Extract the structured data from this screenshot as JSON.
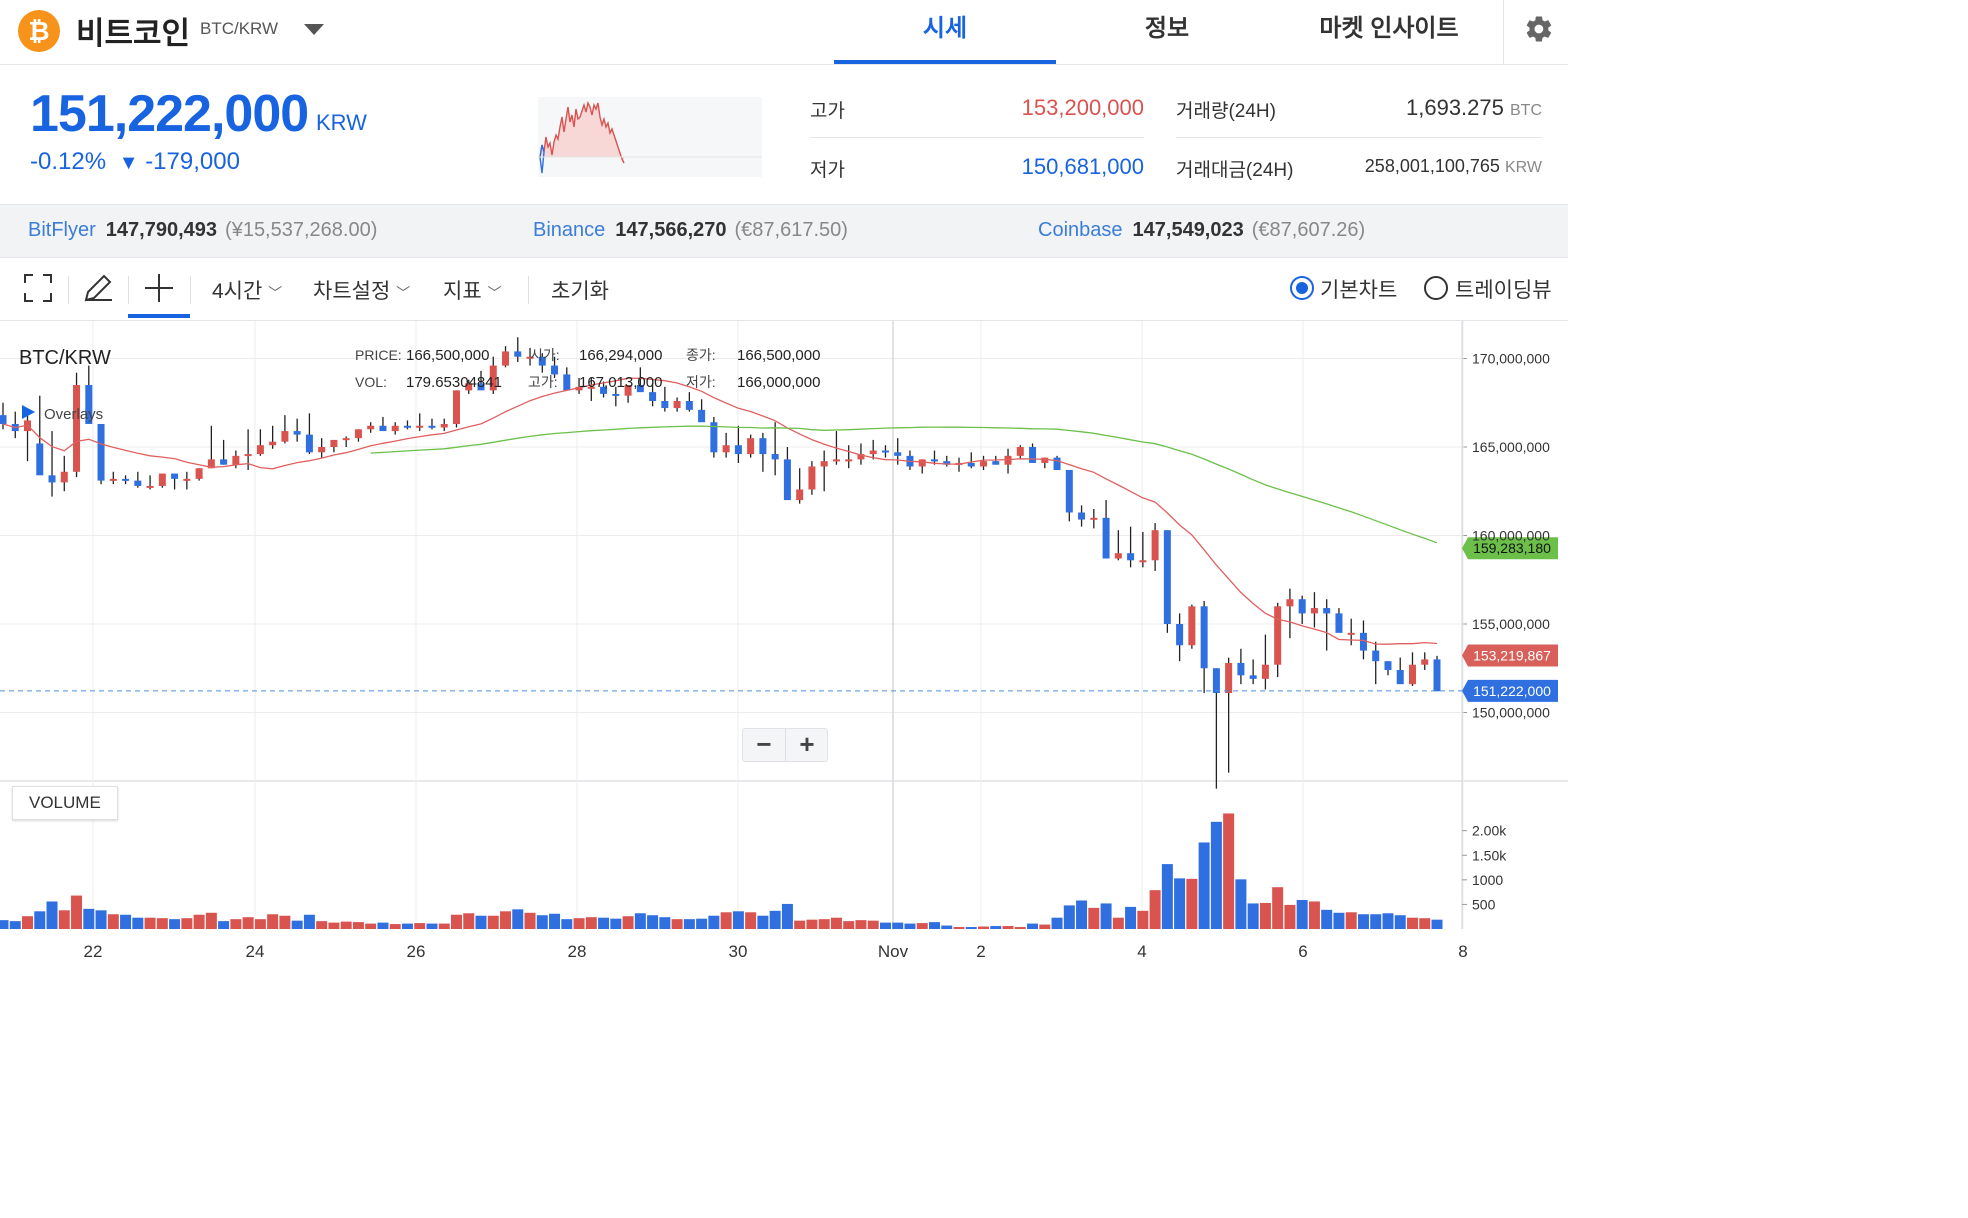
{
  "header": {
    "coin_name": "비트코인",
    "pair": "BTC/KRW",
    "tabs": [
      {
        "label": "시세",
        "active": true
      },
      {
        "label": "정보",
        "active": false
      },
      {
        "label": "마켓 인사이트",
        "active": false
      }
    ]
  },
  "price": {
    "current": "151,222,000",
    "unit": "KRW",
    "change_pct": "-0.12%",
    "change_arrow": "▼",
    "change_abs": "-179,000"
  },
  "stats": {
    "high_label": "고가",
    "high_value": "153,200,000",
    "low_label": "저가",
    "low_value": "150,681,000",
    "volume_label": "거래량(24H)",
    "volume_value": "1,693.275",
    "volume_unit": "BTC",
    "turnover_label": "거래대금(24H)",
    "turnover_value": "258,001,100,765",
    "turnover_unit": "KRW"
  },
  "exchanges": [
    {
      "name": "BitFlyer",
      "price": "147,790,493",
      "converted": "(¥15,537,268.00)"
    },
    {
      "name": "Binance",
      "price": "147,566,270",
      "converted": "(€87,617.50)"
    },
    {
      "name": "Coinbase",
      "price": "147,549,023",
      "converted": "(€87,607.26)"
    }
  ],
  "toolbar": {
    "interval": "4시간",
    "chart_settings": "차트설정",
    "indicators": "지표",
    "reset": "초기화",
    "basic_chart": "기본차트",
    "tradingview": "트레이딩뷰"
  },
  "legend": {
    "symbol": "BTC/KRW",
    "overlays": "Overlays",
    "price_label": "PRICE:",
    "price_value": "166,500,000",
    "open_label": "시가:",
    "open_value": "166,294,000",
    "close_label": "종가:",
    "close_value": "166,500,000",
    "vol_label": "VOL:",
    "vol_value": "179.65304841",
    "high_label": "고가:",
    "high_value": "167,013,000",
    "low_label": "저가:",
    "low_value": "166,000,000"
  },
  "volume_pane_label": "VOLUME",
  "zoom": {
    "minus": "−",
    "plus": "+"
  },
  "colors": {
    "accent": "#1763e0",
    "up": "#d9534f",
    "down": "#2f6fe0",
    "ma_short": "#e06060",
    "ma_long": "#6cc04a"
  },
  "chart_data": {
    "type": "candlestick",
    "y_ticks": [
      "170,000,000",
      "165,000,000",
      "160,000,000",
      "155,000,000",
      "150,000,000"
    ],
    "y_range": [
      144000000,
      172000000
    ],
    "x_ticks": [
      "22",
      "24",
      "26",
      "28",
      "30",
      "Nov",
      "2",
      "4",
      "6",
      "8"
    ],
    "volume_ticks": [
      "2.00k",
      "1.50k",
      "1000",
      "500"
    ],
    "volume_range": [
      0,
      2400
    ],
    "price_tags": [
      {
        "label": "159,283,180",
        "value": 159283180,
        "color": "#6cc04a"
      },
      {
        "label": "153,219,867",
        "value": 153219867,
        "color": "#d9605a"
      },
      {
        "label": "151,222,000",
        "value": 151222000,
        "color": "#2f6fe0"
      }
    ],
    "candles": [
      [
        166.8,
        167.5,
        166.0,
        166.3,
        180
      ],
      [
        166.3,
        167.0,
        165.5,
        165.9,
        160
      ],
      [
        165.9,
        166.9,
        164.2,
        166.5,
        260
      ],
      [
        165.2,
        167.9,
        164.3,
        163.4,
        360
      ],
      [
        163.4,
        165.9,
        162.2,
        163.0,
        560
      ],
      [
        163.0,
        164.5,
        162.5,
        163.6,
        380
      ],
      [
        163.6,
        169.2,
        163.3,
        168.5,
        680
      ],
      [
        168.5,
        169.6,
        166.9,
        166.3,
        410
      ],
      [
        166.3,
        166.3,
        162.9,
        163.1,
        380
      ],
      [
        163.1,
        163.6,
        162.9,
        163.2,
        300
      ],
      [
        163.2,
        163.4,
        162.9,
        163.1,
        290
      ],
      [
        163.1,
        163.6,
        162.7,
        162.8,
        230
      ],
      [
        162.8,
        163.4,
        162.6,
        162.8,
        230
      ],
      [
        162.8,
        163.4,
        162.7,
        163.5,
        220
      ],
      [
        163.5,
        163.5,
        162.6,
        163.2,
        200
      ],
      [
        163.2,
        163.6,
        162.6,
        163.2,
        220
      ],
      [
        163.2,
        163.8,
        163.1,
        163.8,
        290
      ],
      [
        163.8,
        166.2,
        163.8,
        164.3,
        330
      ],
      [
        164.3,
        165.4,
        164.0,
        164.0,
        160
      ],
      [
        164.0,
        164.8,
        163.8,
        164.5,
        200
      ],
      [
        164.5,
        166.0,
        163.7,
        164.6,
        240
      ],
      [
        164.6,
        166.0,
        164.5,
        165.1,
        200
      ],
      [
        165.1,
        166.2,
        164.9,
        165.3,
        300
      ],
      [
        165.3,
        166.8,
        165.2,
        165.9,
        270
      ],
      [
        165.9,
        166.6,
        165.3,
        165.7,
        170
      ],
      [
        165.7,
        166.9,
        164.6,
        164.7,
        290
      ],
      [
        164.7,
        165.5,
        164.4,
        165.0,
        160
      ],
      [
        165.0,
        165.2,
        164.7,
        165.4,
        130
      ],
      [
        165.4,
        165.6,
        165.0,
        165.5,
        150
      ],
      [
        165.5,
        166.0,
        165.3,
        166.0,
        140
      ],
      [
        166.0,
        166.4,
        165.8,
        166.2,
        110
      ],
      [
        166.2,
        166.7,
        166.0,
        165.9,
        130
      ],
      [
        165.9,
        166.4,
        165.7,
        166.2,
        100
      ],
      [
        166.2,
        166.5,
        166.0,
        166.1,
        110
      ],
      [
        166.1,
        166.9,
        165.9,
        166.2,
        120
      ],
      [
        166.2,
        166.6,
        166.0,
        166.1,
        110
      ],
      [
        166.1,
        166.6,
        165.9,
        166.3,
        110
      ],
      [
        166.3,
        168.2,
        166.1,
        168.2,
        290
      ],
      [
        168.2,
        168.8,
        168.0,
        168.6,
        320
      ],
      [
        168.6,
        169.3,
        168.3,
        168.2,
        270
      ],
      [
        168.2,
        170.1,
        168.0,
        169.6,
        270
      ],
      [
        169.6,
        170.7,
        169.5,
        170.4,
        360
      ],
      [
        170.4,
        171.2,
        169.8,
        170.1,
        400
      ],
      [
        170.1,
        170.6,
        169.6,
        170.1,
        330
      ],
      [
        170.1,
        170.3,
        169.2,
        169.6,
        280
      ],
      [
        169.6,
        170.1,
        168.9,
        169.1,
        310
      ],
      [
        169.1,
        169.5,
        168.6,
        168.2,
        200
      ],
      [
        168.2,
        168.9,
        168.0,
        168.4,
        220
      ],
      [
        168.4,
        168.9,
        167.6,
        168.4,
        240
      ],
      [
        168.4,
        168.7,
        167.8,
        168.0,
        230
      ],
      [
        168.0,
        168.4,
        167.3,
        167.9,
        210
      ],
      [
        167.9,
        168.2,
        167.5,
        168.5,
        260
      ],
      [
        168.5,
        169.5,
        168.3,
        168.1,
        320
      ],
      [
        168.1,
        168.6,
        167.3,
        167.6,
        280
      ],
      [
        167.6,
        168.4,
        167.0,
        167.2,
        240
      ],
      [
        167.2,
        167.8,
        167.0,
        167.6,
        200
      ],
      [
        167.6,
        168.1,
        167.0,
        167.1,
        200
      ],
      [
        167.1,
        167.7,
        166.7,
        166.4,
        210
      ],
      [
        166.4,
        166.7,
        164.4,
        164.7,
        270
      ],
      [
        164.7,
        165.8,
        164.4,
        165.1,
        340
      ],
      [
        165.1,
        166.2,
        164.1,
        164.6,
        360
      ],
      [
        164.6,
        165.7,
        164.4,
        165.5,
        340
      ],
      [
        165.5,
        165.8,
        163.6,
        164.6,
        270
      ],
      [
        164.6,
        166.4,
        163.4,
        164.3,
        370
      ],
      [
        164.3,
        165.0,
        162.2,
        162.0,
        510
      ],
      [
        162.0,
        163.8,
        161.8,
        162.6,
        170
      ],
      [
        162.6,
        164.2,
        162.3,
        163.9,
        190
      ],
      [
        163.9,
        164.8,
        162.5,
        164.2,
        200
      ],
      [
        164.2,
        165.9,
        164.0,
        164.3,
        230
      ],
      [
        164.3,
        165.1,
        163.8,
        164.3,
        160
      ],
      [
        164.3,
        165.2,
        164.0,
        164.6,
        180
      ],
      [
        164.6,
        165.4,
        164.3,
        164.8,
        170
      ],
      [
        164.8,
        165.1,
        164.4,
        164.7,
        130
      ],
      [
        164.7,
        165.5,
        164.0,
        164.5,
        130
      ],
      [
        164.5,
        164.8,
        163.7,
        163.9,
        110
      ],
      [
        163.9,
        164.3,
        163.5,
        164.3,
        120
      ],
      [
        164.3,
        164.8,
        164.0,
        164.2,
        140
      ],
      [
        164.2,
        164.5,
        163.9,
        164.0,
        70
      ],
      [
        164.0,
        164.4,
        163.6,
        164.1,
        40
      ],
      [
        164.1,
        164.7,
        163.8,
        163.9,
        40
      ],
      [
        163.9,
        164.5,
        163.7,
        164.2,
        50
      ],
      [
        164.2,
        164.5,
        164.0,
        164.0,
        60
      ],
      [
        164.0,
        164.9,
        163.5,
        164.5,
        60
      ],
      [
        164.5,
        165.1,
        164.3,
        165.0,
        40
      ],
      [
        165.0,
        165.2,
        164.1,
        164.1,
        110
      ],
      [
        164.1,
        164.4,
        163.8,
        164.4,
        90
      ],
      [
        164.4,
        164.5,
        163.9,
        163.7,
        230
      ],
      [
        163.7,
        163.7,
        160.8,
        161.3,
        480
      ],
      [
        161.3,
        161.7,
        160.5,
        160.9,
        580
      ],
      [
        160.9,
        161.5,
        160.4,
        161.0,
        430
      ],
      [
        161.0,
        162.0,
        159.2,
        158.7,
        520
      ],
      [
        158.7,
        160.3,
        158.6,
        159.0,
        230
      ],
      [
        159.0,
        160.5,
        158.2,
        158.6,
        450
      ],
      [
        158.6,
        160.2,
        158.2,
        158.6,
        370
      ],
      [
        158.6,
        160.7,
        158.0,
        160.3,
        790
      ],
      [
        160.3,
        160.3,
        154.5,
        155.0,
        1320
      ],
      [
        155.0,
        155.6,
        152.9,
        153.8,
        1030
      ],
      [
        153.8,
        156.1,
        153.6,
        156.0,
        1020
      ],
      [
        156.0,
        156.3,
        151.1,
        152.5,
        1760
      ],
      [
        152.5,
        152.5,
        145.7,
        151.1,
        2180
      ],
      [
        151.1,
        153.1,
        146.6,
        152.8,
        2350
      ],
      [
        152.8,
        153.6,
        151.6,
        152.1,
        1010
      ],
      [
        152.1,
        153.0,
        151.6,
        151.9,
        520
      ],
      [
        151.9,
        154.4,
        151.3,
        152.7,
        530
      ],
      [
        152.7,
        156.2,
        152.0,
        156.0,
        850
      ],
      [
        156.0,
        157.0,
        154.2,
        156.4,
        490
      ],
      [
        156.4,
        156.6,
        155.0,
        155.6,
        590
      ],
      [
        155.6,
        156.8,
        154.8,
        155.9,
        560
      ],
      [
        155.9,
        156.4,
        153.5,
        155.6,
        390
      ],
      [
        155.6,
        155.9,
        154.9,
        154.5,
        330
      ],
      [
        154.5,
        155.3,
        153.8,
        154.5,
        340
      ],
      [
        154.5,
        155.2,
        153.0,
        153.5,
        300
      ],
      [
        153.5,
        154.0,
        151.6,
        152.9,
        300
      ],
      [
        152.9,
        152.9,
        152.1,
        152.4,
        320
      ],
      [
        152.4,
        153.1,
        151.8,
        151.6,
        280
      ],
      [
        151.6,
        153.4,
        151.5,
        152.7,
        230
      ],
      [
        152.7,
        153.4,
        152.4,
        153.0,
        220
      ],
      [
        153.0,
        153.2,
        151.2,
        151.2,
        190
      ]
    ],
    "ma_short_color": "#e06060",
    "ma_long_color": "#6cc04a"
  }
}
